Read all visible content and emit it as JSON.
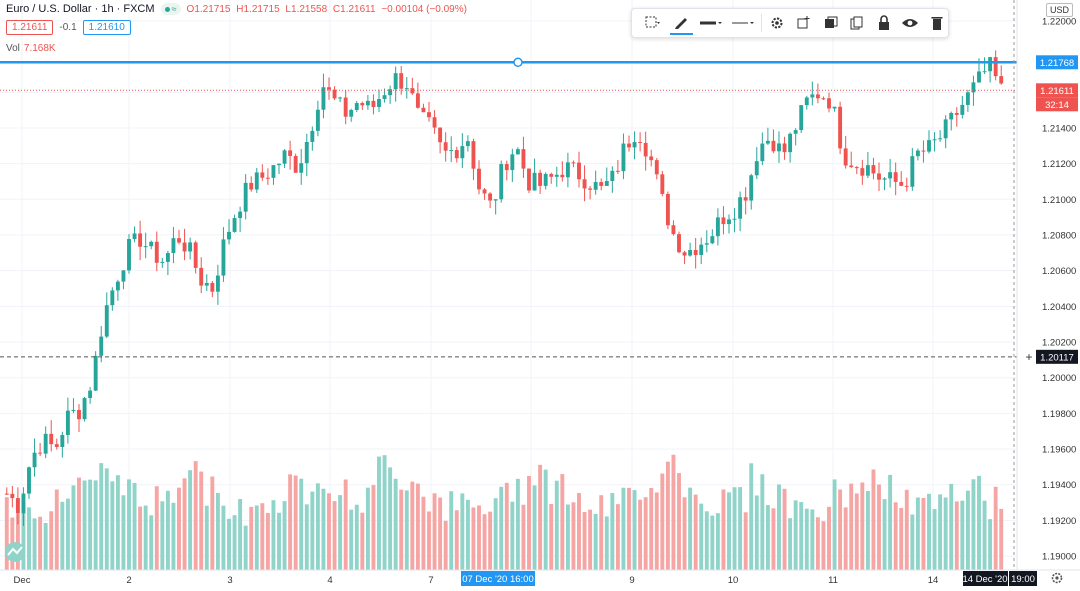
{
  "header": {
    "symbol": "Euro / U.S. Dollar · 1h · FXCM",
    "open": "O1.21715",
    "high": "H1.21715",
    "low": "L1.21558",
    "close": "C1.21611",
    "change": "−0.00104 (−0.09%)",
    "sell_price": "1.21611",
    "spread": "-0.1",
    "buy_price": "1.21610",
    "vol_label": "Vol",
    "vol_value": "7.168K"
  },
  "toolbar": {
    "items": [
      "selection-icon",
      "pencil-icon",
      "line-style-icon",
      "line-width-icon",
      "settings-icon",
      "clone-icon",
      "visual-order-icon",
      "copy-icon",
      "lock-icon",
      "eye-icon",
      "trash-icon"
    ]
  },
  "axis": {
    "currency": "USD",
    "price_ticks": [
      "1.22000",
      "1.21600",
      "1.21400",
      "1.21200",
      "1.21000",
      "1.20800",
      "1.20600",
      "1.20400",
      "1.20200",
      "1.20000",
      "1.19800",
      "1.19600",
      "1.19400",
      "1.19200",
      "1.19000"
    ],
    "time_ticks": [
      "Dec",
      "2",
      "3",
      "4",
      "7",
      "8",
      "9",
      "10",
      "11",
      "14"
    ],
    "horizontal_line_label": "1.21768",
    "last_price_label": "1.21611",
    "countdown_label": "32:14",
    "crosshair_price_label": "1.20117",
    "crosshair_time_label": "07 Dec '20   16:00",
    "last_time_label": "14 Dec '20",
    "last_hour_label": "19:00"
  },
  "colors": {
    "up": "#26a69a",
    "down": "#ef5350",
    "line": "#2196f3",
    "up_vol": "#8fd3c9",
    "down_vol": "#f5a5a3"
  },
  "chart_data": {
    "type": "candlestick",
    "symbol": "EUR/USD",
    "interval": "1h",
    "x": [
      "Dec",
      "2",
      "3",
      "4",
      "7",
      "8",
      "9",
      "10",
      "11",
      "14"
    ],
    "ylim": [
      1.1895,
      1.2205
    ],
    "horizontal_line": 1.21768,
    "last_price": 1.21611,
    "crosshair_price": 1.20117,
    "close_path": [
      1.1935,
      1.1928,
      1.1955,
      1.1965,
      1.196,
      1.1978,
      1.1982,
      1.1998,
      1.2035,
      1.2055,
      1.2072,
      1.2078,
      1.207,
      1.2065,
      1.208,
      1.2072,
      1.2055,
      1.205,
      1.2078,
      1.2095,
      1.2108,
      1.2112,
      1.2118,
      1.2125,
      1.2118,
      1.2138,
      1.2165,
      1.2155,
      1.2148,
      1.2155,
      1.215,
      1.216,
      1.2168,
      1.2165,
      1.2145,
      1.214,
      1.2125,
      1.2128,
      1.2135,
      1.2105,
      1.2095,
      1.212,
      1.213,
      1.211,
      1.2108,
      1.2112,
      1.2118,
      1.2115,
      1.211,
      1.2105,
      1.2112,
      1.213,
      1.214,
      1.2125,
      1.21,
      1.208,
      1.207,
      1.2075,
      1.208,
      1.209,
      1.2095,
      1.2105,
      1.213,
      1.2135,
      1.2125,
      1.214,
      1.2155,
      1.216,
      1.2155,
      1.2125,
      1.212,
      1.2118,
      1.2112,
      1.211,
      1.2108,
      1.2125,
      1.2128,
      1.2135,
      1.2145,
      1.2155,
      1.2165,
      1.2175,
      1.2161
    ],
    "volume_scale": [
      0.25,
      0.35,
      0.5,
      0.7,
      0.9,
      0.6,
      0.4,
      0.5,
      0.8,
      0.55,
      0.3,
      0.35,
      0.45,
      0.6,
      0.75,
      0.5,
      0.45,
      0.9,
      0.7,
      0.5,
      0.35,
      0.3,
      0.4,
      0.6,
      0.85,
      0.6,
      0.4,
      0.3,
      0.45,
      0.65,
      0.95,
      0.55,
      0.4,
      0.5,
      0.7,
      0.5,
      0.35,
      0.3,
      0.5,
      0.7,
      0.55,
      0.4,
      0.35,
      0.45,
      0.6,
      0.4
    ]
  }
}
